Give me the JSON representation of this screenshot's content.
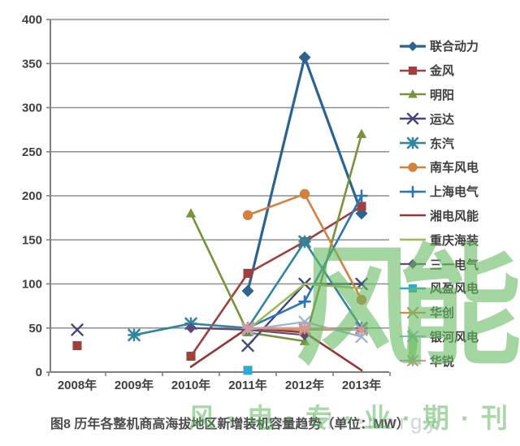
{
  "chart_data": {
    "type": "line",
    "title": "图8 历年各整机商高海拔地区新增装机容量趋势（单位：MW）",
    "xlabel": "",
    "ylabel": "",
    "categories": [
      "2008年",
      "2009年",
      "2010年",
      "2011年",
      "2012年",
      "2013年"
    ],
    "yticks": [
      "0",
      "50",
      "100",
      "150",
      "200",
      "250",
      "300",
      "350",
      "400"
    ],
    "ylim": [
      0,
      400
    ],
    "ystep": 50,
    "grid": "horizontal",
    "legend_position": "right",
    "series": [
      {
        "name": "联合动力",
        "color": "#2B6490",
        "marker": "diamond",
        "lw": 3.2,
        "values": [
          null,
          null,
          null,
          92,
          357,
          180
        ]
      },
      {
        "name": "金风",
        "color": "#9E413E",
        "marker": "square",
        "lw": 2.6,
        "values": [
          30,
          null,
          18,
          112,
          148,
          188
        ]
      },
      {
        "name": "明阳",
        "color": "#77933C",
        "marker": "triangle",
        "lw": 2.6,
        "values": [
          null,
          null,
          180,
          45,
          35,
          270
        ]
      },
      {
        "name": "运达",
        "color": "#45467E",
        "marker": "x",
        "lw": 2.4,
        "values": [
          48,
          null,
          null,
          30,
          100,
          100
        ]
      },
      {
        "name": "东汽",
        "color": "#31859C",
        "marker": "asterisk",
        "lw": 2.6,
        "values": [
          null,
          42,
          55,
          50,
          148,
          50
        ]
      },
      {
        "name": "南车风电",
        "color": "#D4813E",
        "marker": "circle",
        "lw": 2.6,
        "values": [
          null,
          null,
          null,
          178,
          202,
          82
        ]
      },
      {
        "name": "上海电气",
        "color": "#2E75B6",
        "marker": "plus",
        "lw": 2.6,
        "values": [
          null,
          null,
          null,
          50,
          80,
          200
        ]
      },
      {
        "name": "湘电风能",
        "color": "#943734",
        "marker": "none",
        "lw": 2.6,
        "values": [
          null,
          null,
          6,
          50,
          45,
          2
        ]
      },
      {
        "name": "重庆海装",
        "color": "#9BBB59",
        "marker": "none",
        "lw": 2.6,
        "values": [
          null,
          null,
          null,
          48,
          100,
          95
        ]
      },
      {
        "name": "三一电气",
        "color": "#5F497A",
        "marker": "diamond",
        "lw": 2.2,
        "values": [
          null,
          null,
          50,
          48,
          42,
          null
        ]
      },
      {
        "name": "风盈风电",
        "color": "#2FA8D5",
        "marker": "square",
        "lw": 2.4,
        "values": [
          null,
          null,
          null,
          2,
          null,
          null
        ]
      },
      {
        "name": "华创",
        "color": "#CE8E54",
        "marker": "x",
        "lw": 2.2,
        "values": [
          null,
          null,
          null,
          50,
          48,
          48
        ]
      },
      {
        "name": "银河风电",
        "color": "#95B3D7",
        "marker": "x",
        "lw": 2.2,
        "values": [
          null,
          null,
          null,
          48,
          57,
          40
        ]
      },
      {
        "name": "华锐",
        "color": "#D99694",
        "marker": "asterisk",
        "lw": 2.2,
        "values": [
          null,
          null,
          null,
          50,
          50,
          48
        ]
      }
    ]
  },
  "watermark": {
    "logo": "风能",
    "bottom_cn": "风·电·专·业·期·刊",
    "bottom_en": "renewableenergy"
  },
  "colors": {
    "gridline": "#8A9096",
    "axis": "#7F7F7F",
    "tick_label": "#404040",
    "title_text": "#4D4D4D",
    "watermark_green": "#68BB63"
  }
}
